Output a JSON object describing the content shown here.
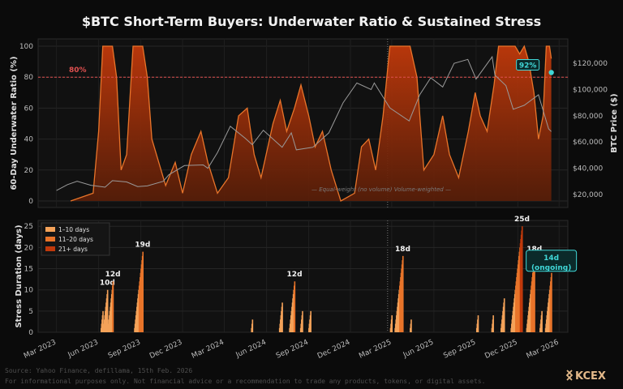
{
  "title": "$BTC Short-Term Buyers: Underwater Ratio & Sustained Stress",
  "brand": {
    "name": "KCEX",
    "color": "#e3b98a"
  },
  "footer": {
    "source": "Source: Yahoo Finance, defillama, 15th Feb. 2026",
    "disclaimer": "For informational purposes only. Not financial advice or a recommendation to trade any products, tokens, or digital assets."
  },
  "colors": {
    "background": "#0b0b0b",
    "panel": "#111111",
    "series_light": "#f4a259",
    "series_mid": "#e8742a",
    "series_dark": "#c0390b",
    "price_line": "#9a9a9a",
    "threshold": "#e05050",
    "accent": "#40d8d8"
  },
  "chart_data": [
    {
      "type": "area",
      "ylabel": "60-Day Underwater Ratio (%)",
      "ylabel_right": "BTC Price ($)",
      "ylim": [
        0,
        100
      ],
      "ylim_right": [
        15000,
        130000
      ],
      "yticks": [
        0,
        20,
        40,
        60,
        80,
        100
      ],
      "yticks_right": [
        "$20,000",
        "$40,000",
        "$60,000",
        "$80,000",
        "$100,000",
        "$120,000"
      ],
      "yticks_right_values": [
        20000,
        40000,
        60000,
        80000,
        100000,
        120000
      ],
      "threshold": {
        "value": 80,
        "label": "80%"
      },
      "current_marker": {
        "label": "92%",
        "date": "2026-02-12",
        "price": 113000
      },
      "legend_text": "— Equal-weight (no volume)   Volume-weighted —",
      "underwater_series": [
        {
          "date": "2023-04-01",
          "value": 0
        },
        {
          "date": "2023-05-20",
          "value": 5
        },
        {
          "date": "2023-06-01",
          "value": 45
        },
        {
          "date": "2023-06-10",
          "value": 100
        },
        {
          "date": "2023-06-20",
          "value": 100
        },
        {
          "date": "2023-07-01",
          "value": 100
        },
        {
          "date": "2023-07-10",
          "value": 80
        },
        {
          "date": "2023-07-20",
          "value": 20
        },
        {
          "date": "2023-08-01",
          "value": 30
        },
        {
          "date": "2023-08-15",
          "value": 100
        },
        {
          "date": "2023-08-25",
          "value": 100
        },
        {
          "date": "2023-09-05",
          "value": 100
        },
        {
          "date": "2023-09-15",
          "value": 80
        },
        {
          "date": "2023-09-25",
          "value": 40
        },
        {
          "date": "2023-10-10",
          "value": 25
        },
        {
          "date": "2023-10-25",
          "value": 10
        },
        {
          "date": "2023-11-15",
          "value": 25
        },
        {
          "date": "2023-12-01",
          "value": 5
        },
        {
          "date": "2023-12-20",
          "value": 30
        },
        {
          "date": "2024-01-10",
          "value": 45
        },
        {
          "date": "2024-01-25",
          "value": 25
        },
        {
          "date": "2024-02-15",
          "value": 5
        },
        {
          "date": "2024-03-10",
          "value": 15
        },
        {
          "date": "2024-04-01",
          "value": 55
        },
        {
          "date": "2024-04-20",
          "value": 60
        },
        {
          "date": "2024-05-05",
          "value": 30
        },
        {
          "date": "2024-05-20",
          "value": 15
        },
        {
          "date": "2024-06-15",
          "value": 50
        },
        {
          "date": "2024-07-01",
          "value": 65
        },
        {
          "date": "2024-07-15",
          "value": 45
        },
        {
          "date": "2024-08-01",
          "value": 60
        },
        {
          "date": "2024-08-15",
          "value": 75
        },
        {
          "date": "2024-09-01",
          "value": 55
        },
        {
          "date": "2024-09-15",
          "value": 35
        },
        {
          "date": "2024-10-01",
          "value": 45
        },
        {
          "date": "2024-10-20",
          "value": 20
        },
        {
          "date": "2024-11-10",
          "value": 0
        },
        {
          "date": "2024-12-10",
          "value": 5
        },
        {
          "date": "2024-12-25",
          "value": 35
        },
        {
          "date": "2025-01-10",
          "value": 40
        },
        {
          "date": "2025-01-25",
          "value": 20
        },
        {
          "date": "2025-02-10",
          "value": 55
        },
        {
          "date": "2025-02-25",
          "value": 100
        },
        {
          "date": "2025-03-10",
          "value": 100
        },
        {
          "date": "2025-03-25",
          "value": 100
        },
        {
          "date": "2025-04-10",
          "value": 100
        },
        {
          "date": "2025-04-25",
          "value": 80
        },
        {
          "date": "2025-05-10",
          "value": 20
        },
        {
          "date": "2025-06-01",
          "value": 30
        },
        {
          "date": "2025-06-20",
          "value": 55
        },
        {
          "date": "2025-07-05",
          "value": 30
        },
        {
          "date": "2025-07-25",
          "value": 15
        },
        {
          "date": "2025-08-15",
          "value": 45
        },
        {
          "date": "2025-08-30",
          "value": 70
        },
        {
          "date": "2025-09-10",
          "value": 55
        },
        {
          "date": "2025-09-25",
          "value": 45
        },
        {
          "date": "2025-10-10",
          "value": 75
        },
        {
          "date": "2025-10-20",
          "value": 100
        },
        {
          "date": "2025-11-01",
          "value": 100
        },
        {
          "date": "2025-11-15",
          "value": 100
        },
        {
          "date": "2025-11-25",
          "value": 100
        },
        {
          "date": "2025-12-05",
          "value": 95
        },
        {
          "date": "2025-12-15",
          "value": 100
        },
        {
          "date": "2025-12-25",
          "value": 90
        },
        {
          "date": "2026-01-05",
          "value": 70
        },
        {
          "date": "2026-01-15",
          "value": 40
        },
        {
          "date": "2026-01-25",
          "value": 55
        },
        {
          "date": "2026-02-01",
          "value": 100
        },
        {
          "date": "2026-02-08",
          "value": 100
        },
        {
          "date": "2026-02-12",
          "value": 92
        }
      ],
      "price_series": [
        {
          "date": "2023-03-01",
          "value": 23000
        },
        {
          "date": "2023-03-25",
          "value": 27500
        },
        {
          "date": "2023-04-15",
          "value": 30000
        },
        {
          "date": "2023-05-15",
          "value": 27000
        },
        {
          "date": "2023-06-15",
          "value": 25500
        },
        {
          "date": "2023-07-01",
          "value": 30500
        },
        {
          "date": "2023-08-01",
          "value": 29500
        },
        {
          "date": "2023-08-25",
          "value": 26000
        },
        {
          "date": "2023-09-15",
          "value": 26500
        },
        {
          "date": "2023-10-20",
          "value": 30000
        },
        {
          "date": "2023-11-01",
          "value": 35000
        },
        {
          "date": "2023-12-05",
          "value": 42000
        },
        {
          "date": "2024-01-15",
          "value": 42500
        },
        {
          "date": "2024-01-25",
          "value": 40000
        },
        {
          "date": "2024-02-15",
          "value": 52000
        },
        {
          "date": "2024-03-14",
          "value": 72000
        },
        {
          "date": "2024-04-15",
          "value": 63000
        },
        {
          "date": "2024-05-01",
          "value": 58000
        },
        {
          "date": "2024-05-25",
          "value": 69000
        },
        {
          "date": "2024-07-05",
          "value": 56000
        },
        {
          "date": "2024-07-25",
          "value": 67000
        },
        {
          "date": "2024-08-05",
          "value": 54000
        },
        {
          "date": "2024-09-10",
          "value": 56000
        },
        {
          "date": "2024-10-15",
          "value": 67000
        },
        {
          "date": "2024-11-15",
          "value": 90000
        },
        {
          "date": "2024-12-15",
          "value": 105000
        },
        {
          "date": "2025-01-15",
          "value": 100000
        },
        {
          "date": "2025-01-22",
          "value": 105000
        },
        {
          "date": "2025-02-25",
          "value": 86000
        },
        {
          "date": "2025-04-08",
          "value": 76000
        },
        {
          "date": "2025-05-01",
          "value": 96000
        },
        {
          "date": "2025-05-25",
          "value": 109000
        },
        {
          "date": "2025-06-20",
          "value": 102000
        },
        {
          "date": "2025-07-15",
          "value": 120000
        },
        {
          "date": "2025-08-14",
          "value": 123000
        },
        {
          "date": "2025-09-01",
          "value": 108000
        },
        {
          "date": "2025-10-06",
          "value": 125000
        },
        {
          "date": "2025-10-12",
          "value": 111000
        },
        {
          "date": "2025-11-05",
          "value": 103000
        },
        {
          "date": "2025-11-21",
          "value": 85000
        },
        {
          "date": "2025-12-15",
          "value": 88000
        },
        {
          "date": "2026-01-15",
          "value": 96000
        },
        {
          "date": "2026-02-06",
          "value": 70000
        },
        {
          "date": "2026-02-12",
          "value": 68000
        }
      ]
    },
    {
      "type": "bar",
      "ylabel": "Stress Duration (days)",
      "ylim": [
        0,
        26
      ],
      "yticks": [
        0,
        5,
        10,
        15,
        20,
        25
      ],
      "xticks": [
        "Mar 2023",
        "Jun 2023",
        "Sep 2023",
        "Dec 2023",
        "Mar 2024",
        "Jun 2024",
        "Sep 2024",
        "Dec 2024",
        "Mar 2025",
        "Jun 2025",
        "Sep 2025",
        "Dec 2025",
        "Mar 2026"
      ],
      "xticks_dates": [
        "2023-03-01",
        "2023-06-01",
        "2023-09-01",
        "2023-12-01",
        "2024-03-01",
        "2024-06-01",
        "2024-09-01",
        "2024-12-01",
        "2025-03-01",
        "2025-06-01",
        "2025-09-01",
        "2025-12-01",
        "2026-03-01"
      ],
      "x_range": [
        "2023-01-20",
        "2026-03-20"
      ],
      "legend": [
        {
          "label": "1–10 days",
          "color": "#f4a259"
        },
        {
          "label": "11–20 days",
          "color": "#e8742a"
        },
        {
          "label": "21+ days",
          "color": "#c0390b"
        }
      ],
      "episodes": [
        {
          "end": "2023-06-10",
          "peak": 5,
          "label": ""
        },
        {
          "end": "2023-06-20",
          "peak": 10,
          "label": "10d"
        },
        {
          "end": "2023-07-02",
          "peak": 12,
          "label": "12d"
        },
        {
          "end": "2023-09-05",
          "peak": 19,
          "label": "19d"
        },
        {
          "end": "2024-05-01",
          "peak": 3,
          "label": ""
        },
        {
          "end": "2024-07-05",
          "peak": 7,
          "label": ""
        },
        {
          "end": "2024-08-01",
          "peak": 12,
          "label": "12d"
        },
        {
          "end": "2024-08-18",
          "peak": 5,
          "label": ""
        },
        {
          "end": "2024-09-05",
          "peak": 5,
          "label": ""
        },
        {
          "end": "2025-03-01",
          "peak": 4,
          "label": ""
        },
        {
          "end": "2025-03-25",
          "peak": 18,
          "label": "18d"
        },
        {
          "end": "2025-04-12",
          "peak": 3,
          "label": ""
        },
        {
          "end": "2025-09-05",
          "peak": 4,
          "label": ""
        },
        {
          "end": "2025-10-08",
          "peak": 4,
          "label": ""
        },
        {
          "end": "2025-11-01",
          "peak": 8,
          "label": ""
        },
        {
          "end": "2025-12-10",
          "peak": 25,
          "label": "25d"
        },
        {
          "end": "2026-01-06",
          "peak": 18,
          "label": "18d"
        },
        {
          "end": "2026-01-22",
          "peak": 5,
          "label": ""
        },
        {
          "end": "2026-02-12",
          "peak": 14,
          "label": "14d\n(ongoing)"
        }
      ]
    }
  ]
}
